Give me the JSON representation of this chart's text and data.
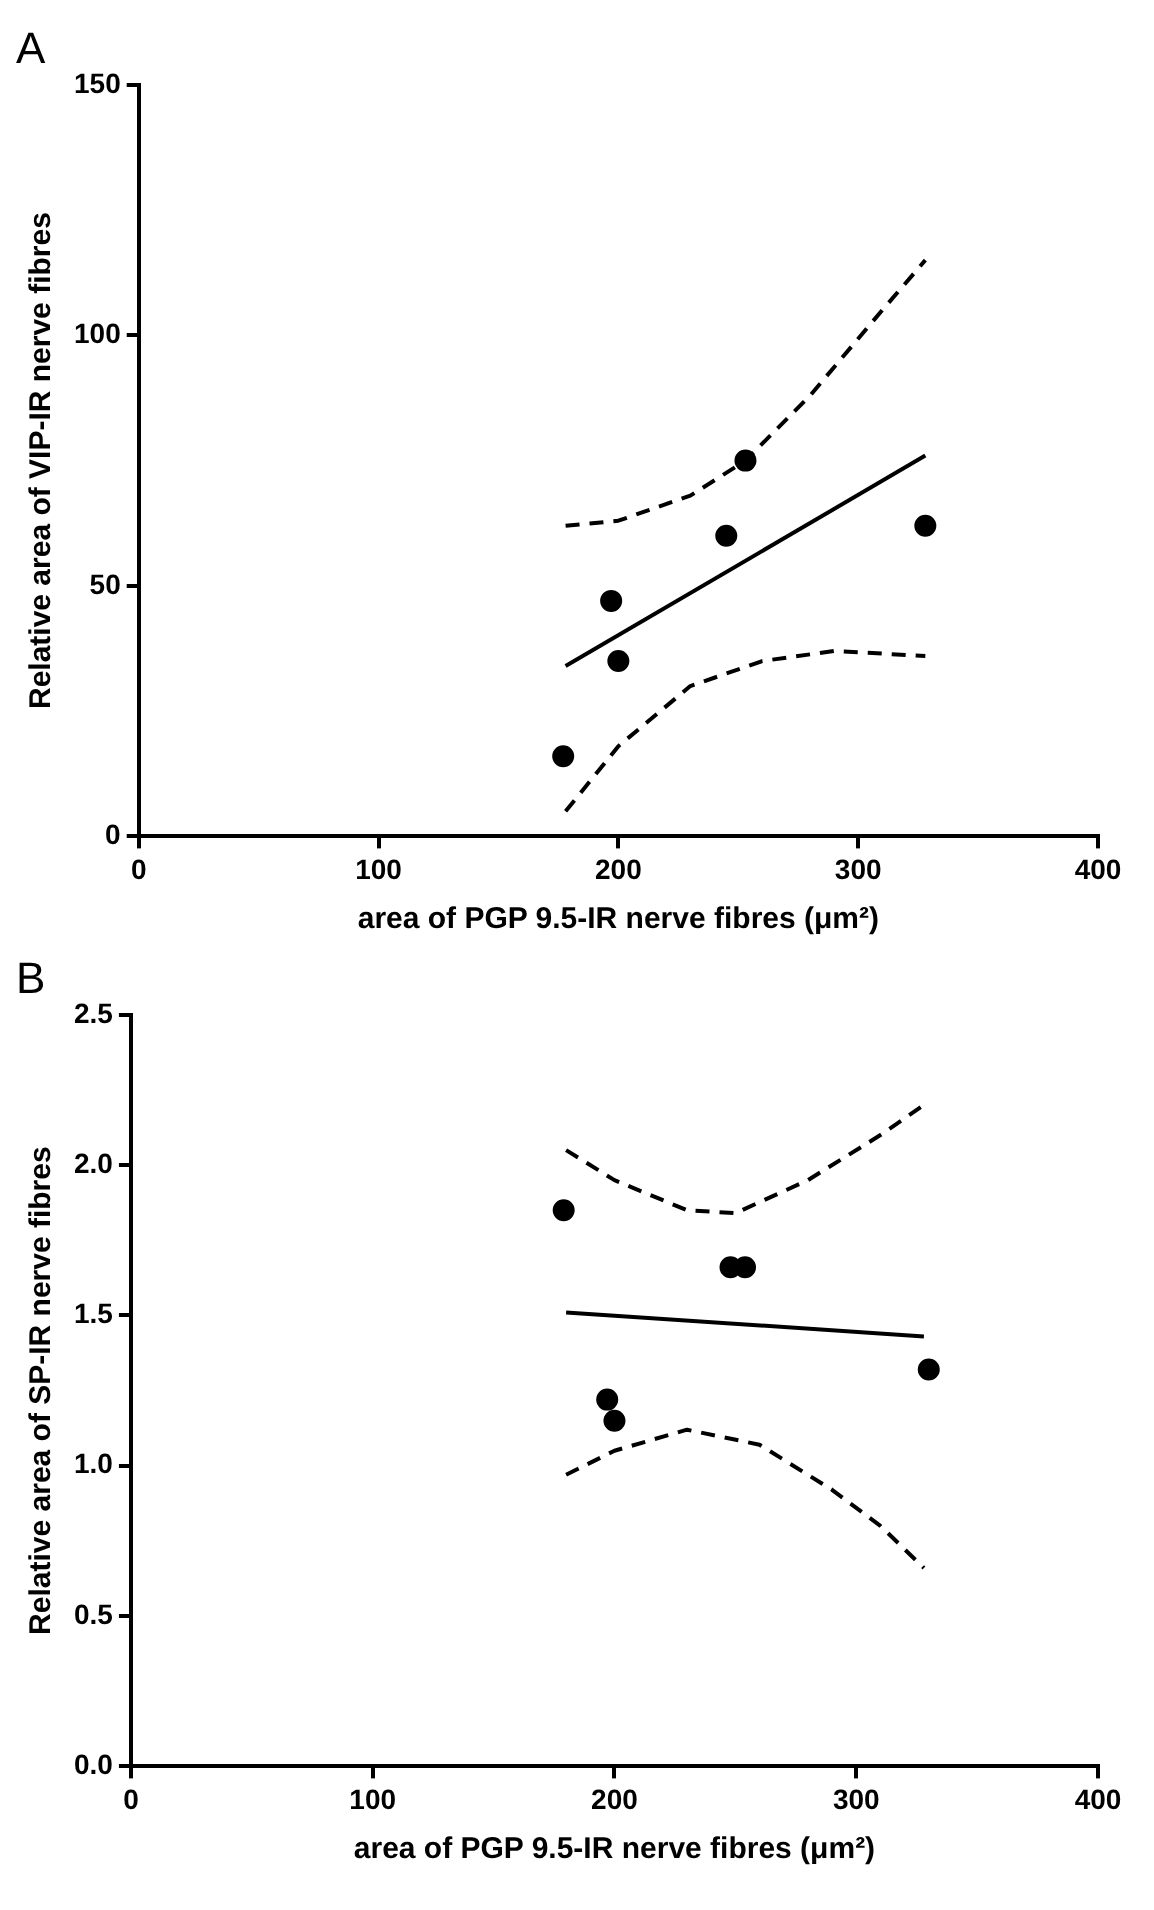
{
  "chart_data": [
    {
      "type": "scatter",
      "title": "A",
      "xlabel": "area of PGP 9.5-IR nerve fibres (μm²)",
      "ylabel": "Relative area of VIP-IR nerve fibres",
      "xlim": [
        0,
        400
      ],
      "xticks": [
        0,
        100,
        200,
        300,
        400
      ],
      "ylim": [
        0,
        150
      ],
      "yticks": [
        0,
        50,
        100,
        150
      ],
      "grid": false,
      "legend": false,
      "series": [
        {
          "type": "scatter",
          "color": "#000000",
          "marker": "circle",
          "x": [
            177,
            197,
            200,
            245,
            253,
            328
          ],
          "values": [
            16,
            47,
            35,
            60,
            75,
            62
          ]
        },
        {
          "type": "line",
          "color": "#000000",
          "marker": "none",
          "line_style": "solid",
          "x": [
            178,
            328
          ],
          "values": [
            34,
            76
          ]
        },
        {
          "type": "line",
          "color": "#000000",
          "marker": "none",
          "line_style": "dashed",
          "x": [
            178,
            200,
            230,
            253,
            280,
            310,
            328
          ],
          "values": [
            62,
            63,
            68,
            75,
            88,
            105,
            115
          ]
        },
        {
          "type": "line",
          "color": "#000000",
          "marker": "none",
          "line_style": "dashed",
          "x": [
            178,
            200,
            230,
            260,
            290,
            328
          ],
          "values": [
            5,
            18,
            30,
            35,
            37,
            36
          ]
        }
      ]
    },
    {
      "type": "scatter",
      "title": "B",
      "xlabel": "area of PGP 9.5-IR nerve fibres (μm²)",
      "ylabel": "Relative area of SP-IR nerve fibres",
      "xlim": [
        0,
        400
      ],
      "xticks": [
        0,
        100,
        200,
        300,
        400
      ],
      "ylim": [
        0,
        2.5
      ],
      "yticks": [
        {
          "value": 0,
          "label": "0.0"
        },
        {
          "value": 0.5,
          "label": "0.5"
        },
        {
          "value": 1,
          "label": "1.0"
        },
        {
          "value": 1.5,
          "label": "1.5"
        },
        {
          "value": 2,
          "label": "2.0"
        },
        {
          "value": 2.5,
          "label": "2.5"
        }
      ],
      "grid": false,
      "legend": false,
      "series": [
        {
          "type": "scatter",
          "color": "#000000",
          "marker": "circle",
          "x": [
            179,
            197,
            200,
            248,
            254,
            330
          ],
          "values": [
            1.85,
            1.22,
            1.15,
            1.66,
            1.66,
            1.32
          ]
        },
        {
          "type": "line",
          "color": "#000000",
          "marker": "none",
          "line_style": "solid",
          "x": [
            180,
            328
          ],
          "values": [
            1.51,
            1.43
          ]
        },
        {
          "type": "line",
          "color": "#000000",
          "marker": "none",
          "line_style": "dashed",
          "x": [
            180,
            200,
            230,
            250,
            280,
            310,
            328
          ],
          "values": [
            2.05,
            1.95,
            1.85,
            1.84,
            1.95,
            2.1,
            2.2
          ]
        },
        {
          "type": "line",
          "color": "#000000",
          "marker": "none",
          "line_style": "dashed",
          "x": [
            180,
            200,
            230,
            260,
            290,
            310,
            328
          ],
          "values": [
            0.97,
            1.05,
            1.12,
            1.07,
            0.92,
            0.8,
            0.66
          ]
        }
      ]
    }
  ]
}
